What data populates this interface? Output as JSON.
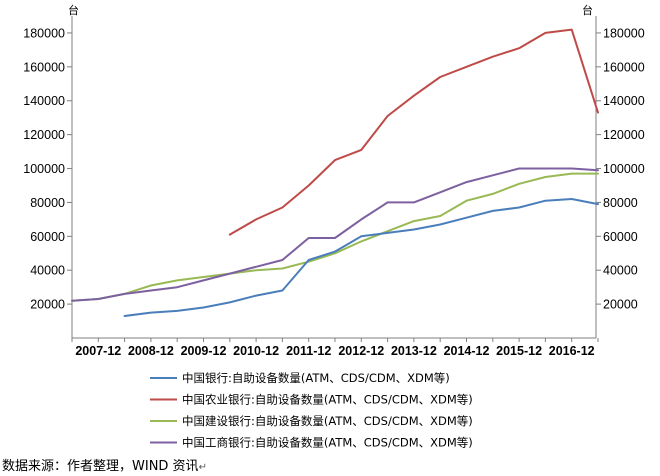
{
  "chart_data": {
    "type": "line",
    "title": "",
    "unit_left": "台",
    "unit_right": "台",
    "ylim": [
      0,
      190000
    ],
    "y_ticks": [
      20000,
      40000,
      60000,
      80000,
      100000,
      120000,
      140000,
      160000,
      180000
    ],
    "y_tick_labels": [
      "20000",
      "40000",
      "60000",
      "80000",
      "100000",
      "120000",
      "140000",
      "160000",
      "180000"
    ],
    "x": [
      "2007-06",
      "2007-12",
      "2008-06",
      "2008-12",
      "2009-06",
      "2009-12",
      "2010-06",
      "2010-12",
      "2011-06",
      "2011-12",
      "2012-06",
      "2012-12",
      "2013-06",
      "2013-12",
      "2014-06",
      "2014-12",
      "2015-06",
      "2015-12",
      "2016-06",
      "2016-12",
      "2017-06"
    ],
    "x_tick_labels": [
      "2007-12",
      "2008-12",
      "2009-12",
      "2010-12",
      "2011-12",
      "2012-12",
      "2013-12",
      "2014-12",
      "2015-12",
      "2016-12"
    ],
    "grid": false,
    "legend_position": "bottom",
    "series": [
      {
        "name": "中国银行:自助设备数量(ATM、CDS/CDM、XDM等)",
        "color": "#4a7ebb",
        "values": [
          null,
          null,
          13000,
          15000,
          16000,
          18000,
          21000,
          25000,
          28000,
          46000,
          51000,
          60000,
          62000,
          64000,
          67000,
          71000,
          75000,
          77000,
          81000,
          82000,
          79000
        ]
      },
      {
        "name": "中国农业银行:自助设备数量(ATM、CDS/CDM、XDM等)",
        "color": "#be4b48",
        "values": [
          null,
          null,
          null,
          null,
          null,
          null,
          61000,
          70000,
          77000,
          90000,
          105000,
          111000,
          131000,
          143000,
          154000,
          160000,
          166000,
          171000,
          180000,
          182000,
          133000
        ]
      },
      {
        "name": "中国建设银行:自助设备数量(ATM、CDS/CDM、XDM等)",
        "color": "#98b954",
        "values": [
          22000,
          23000,
          26000,
          31000,
          34000,
          36000,
          38000,
          40000,
          41000,
          45000,
          50000,
          57000,
          63000,
          69000,
          72000,
          81000,
          85000,
          91000,
          95000,
          97000,
          97000
        ]
      },
      {
        "name": "中国工商银行:自助设备数量(ATM、CDS/CDM、XDM等)",
        "color": "#7d60a0",
        "values": [
          22000,
          23000,
          26000,
          28000,
          30000,
          34000,
          38000,
          42000,
          46000,
          59000,
          59000,
          70000,
          80000,
          80000,
          86000,
          92000,
          96000,
          100000,
          100000,
          100000,
          99000
        ]
      }
    ]
  },
  "source_text": "数据来源：作者整理，WIND 资讯",
  "return_mark": "↵"
}
